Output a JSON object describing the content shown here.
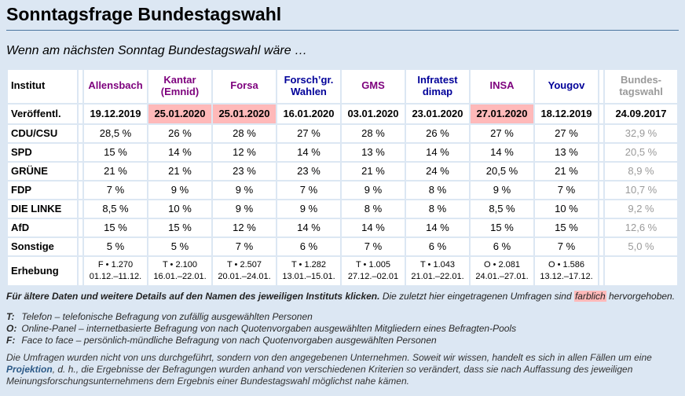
{
  "page": {
    "title": "Sonntagsfrage Bundestagswahl",
    "subtitle": "Wenn am nächsten Sonntag Bundestagswahl wäre …"
  },
  "colors": {
    "page_background": "#dce7f3",
    "cell_background": "#ffffff",
    "highlight_pink": "#ffb9b9",
    "visited_link_purple": "#7d007d",
    "link_navy": "#000099",
    "muted_gray": "#9a9a9a",
    "rule_blue": "#4b769f"
  },
  "table": {
    "corner_label": "Institut",
    "published_label": "Veröffentl.",
    "survey_label": "Erhebung",
    "columns": [
      {
        "name": "Allensbach",
        "date": "19.12.2019",
        "highlight": false,
        "link_state": "visited",
        "result": false
      },
      {
        "name": "Kantar (Emnid)",
        "date": "25.01.2020",
        "highlight": true,
        "link_state": "visited",
        "result": false
      },
      {
        "name": "Forsa",
        "date": "25.01.2020",
        "highlight": true,
        "link_state": "visited",
        "result": false
      },
      {
        "name": "Forsch’gr. Wahlen",
        "date": "16.01.2020",
        "highlight": false,
        "link_state": "unvisited",
        "result": false
      },
      {
        "name": "GMS",
        "date": "03.01.2020",
        "highlight": false,
        "link_state": "visited",
        "result": false
      },
      {
        "name": "Infratest dimap",
        "date": "23.01.2020",
        "highlight": false,
        "link_state": "unvisited",
        "result": false
      },
      {
        "name": "INSA",
        "date": "27.01.2020",
        "highlight": true,
        "link_state": "visited",
        "result": false
      },
      {
        "name": "Yougov",
        "date": "18.12.2019",
        "highlight": false,
        "link_state": "unvisited",
        "result": false
      },
      {
        "name": "Bundes-tagswahl",
        "date": "24.09.2017",
        "highlight": false,
        "link_state": "none",
        "result": true
      }
    ],
    "rows": [
      {
        "label": "CDU/CSU",
        "values": [
          "28,5 %",
          "26 %",
          "28 %",
          "27 %",
          "28 %",
          "26 %",
          "27 %",
          "27 %",
          "32,9 %"
        ]
      },
      {
        "label": "SPD",
        "values": [
          "15 %",
          "14 %",
          "12 %",
          "14 %",
          "13 %",
          "14 %",
          "14 %",
          "13 %",
          "20,5 %"
        ]
      },
      {
        "label": "GRÜNE",
        "values": [
          "21 %",
          "21 %",
          "23 %",
          "23 %",
          "21 %",
          "24 %",
          "20,5 %",
          "21 %",
          "8,9 %"
        ]
      },
      {
        "label": "FDP",
        "values": [
          "7 %",
          "9 %",
          "9 %",
          "7 %",
          "9 %",
          "8 %",
          "9 %",
          "7 %",
          "10,7 %"
        ]
      },
      {
        "label": "DIE LINKE",
        "values": [
          "8,5 %",
          "10 %",
          "9 %",
          "9 %",
          "8 %",
          "8 %",
          "8,5 %",
          "10 %",
          "9,2 %"
        ]
      },
      {
        "label": "AfD",
        "values": [
          "15 %",
          "15 %",
          "12 %",
          "14 %",
          "14 %",
          "14 %",
          "15 %",
          "15 %",
          "12,6 %"
        ]
      },
      {
        "label": "Sonstige",
        "values": [
          "5 %",
          "5 %",
          "7 %",
          "6 %",
          "7 %",
          "6 %",
          "6 %",
          "7 %",
          "5,0 %"
        ]
      }
    ],
    "erhebung": [
      {
        "info": "F • 1.270",
        "period": "01.12.–11.12."
      },
      {
        "info": "T • 2.100",
        "period": "16.01.–22.01."
      },
      {
        "info": "T • 2.507",
        "period": "20.01.–24.01."
      },
      {
        "info": "T • 1.282",
        "period": "13.01.–15.01."
      },
      {
        "info": "T • 1.005",
        "period": "27.12.–02.01"
      },
      {
        "info": "T • 1.043",
        "period": "21.01.–22.01."
      },
      {
        "info": "O • 2.081",
        "period": "24.01.–27.01."
      },
      {
        "info": "O • 1.586",
        "period": "13.12.–17.12."
      },
      {
        "info": "",
        "period": ""
      }
    ]
  },
  "note": {
    "lead": "Für ältere Daten und weitere Details auf den Namen des jeweiligen Instituts klicken.",
    "rest": "Die zuletzt hier eingetragenen Umfragen sind",
    "marked": "farblich",
    "tail": "hervorgehoben."
  },
  "legend": {
    "items": [
      {
        "key": "T:",
        "text": "Telefon – telefonische Befragung von zufällig ausgewählten Personen"
      },
      {
        "key": "O:",
        "text": "Online-Panel – internetbasierte Befragung von nach Quotenvorgaben ausgewählten Mitgliedern eines Befragten-Pools"
      },
      {
        "key": "F:",
        "text": "Face to face – persönlich-mündliche Befragung von nach Quotenvorgaben ausgewählten Personen"
      }
    ]
  },
  "disclaimer": {
    "before": "Die Umfragen wurden nicht von uns durchgeführt, sondern von den angegebenen Unternehmen. Soweit wir wissen, handelt es sich in allen Fällen um eine",
    "link": "Projektion",
    "after": ", d. h., die Ergebnisse der Befragungen wurden anhand von verschiedenen Kriterien so verändert, dass sie nach Auffassung des jeweiligen Meinungsforschungsunternehmens dem Ergebnis einer Bundestagswahl möglichst nahe kämen."
  }
}
